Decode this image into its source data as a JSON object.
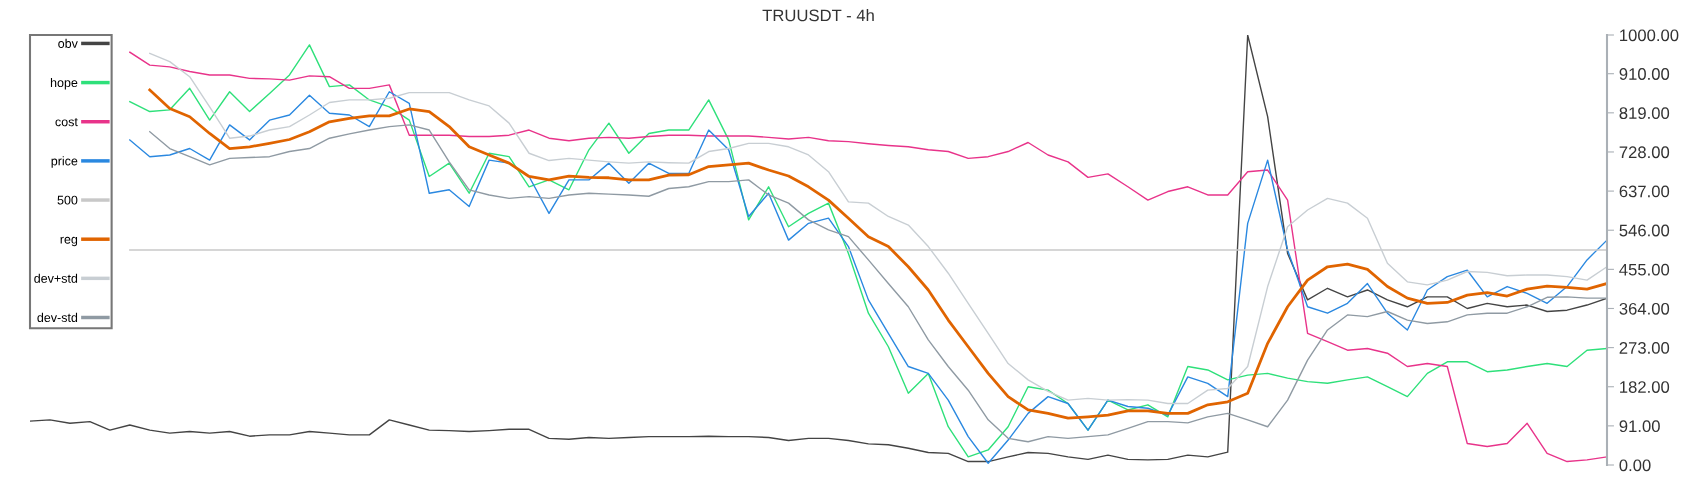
{
  "chart_data": {
    "type": "line",
    "title": "TRUUSDT - 4h",
    "categories": [
      null,
      null,
      null,
      null,
      null,
      null,
      null,
      null,
      null,
      null,
      null,
      null,
      null,
      null,
      null,
      null,
      null,
      null,
      null,
      null,
      null,
      null,
      null,
      null,
      null,
      null,
      null,
      null,
      null,
      null,
      null,
      null,
      null,
      null,
      null,
      null,
      null,
      null,
      null,
      null,
      null,
      null,
      null,
      null,
      null,
      null,
      null,
      null,
      null,
      null,
      null,
      null,
      null,
      null,
      null,
      null,
      null,
      null,
      null,
      null,
      null,
      null,
      null,
      null,
      null,
      null,
      null,
      null,
      null,
      null,
      null,
      null,
      null,
      null,
      null,
      null,
      null,
      null,
      null,
      null
    ],
    "series": [
      {
        "name": "obv",
        "color": "#444444",
        "values": [
          102,
          105,
          97,
          101,
          81,
          93,
          81,
          74,
          78,
          74,
          78,
          67,
          70,
          70,
          78,
          74,
          70,
          70,
          105,
          93,
          81,
          80,
          78,
          80,
          83,
          83,
          62,
          60,
          64,
          62,
          64,
          66,
          66,
          66,
          67,
          66,
          66,
          64,
          57,
          62,
          62,
          57,
          49,
          47,
          39,
          29,
          27,
          8,
          8,
          19,
          29,
          27,
          19,
          13,
          23,
          13,
          12,
          13,
          23,
          19,
          30,
          1000,
          810,
          492,
          384,
          411,
          391,
          407,
          384,
          368,
          391,
          391,
          364,
          376,
          368,
          372,
          357,
          360,
          372,
          388
        ]
      },
      {
        "name": "hope",
        "color": "#2ee07a",
        "values": [
          null,
          null,
          null,
          null,
          null,
          845,
          822,
          826,
          876,
          802,
          868,
          822,
          864,
          907,
          977,
          880,
          884,
          849,
          833,
          802,
          671,
          702,
          632,
          725,
          717,
          647,
          663,
          640,
          733,
          795,
          725,
          771,
          779,
          779,
          849,
          756,
          570,
          647,
          554,
          585,
          609,
          492,
          353,
          275,
          167,
          213,
          89,
          19,
          35,
          89,
          182,
          174,
          143,
          81,
          151,
          128,
          140,
          112,
          229,
          221,
          198,
          209,
          213,
          202,
          194,
          190,
          198,
          205,
          182,
          159,
          213,
          240,
          240,
          217,
          221,
          229,
          236,
          229,
          267,
          271
        ]
      },
      {
        "name": "cost",
        "color": "#e8338a",
        "values": [
          null,
          null,
          null,
          null,
          null,
          960,
          930,
          926,
          915,
          907,
          907,
          899,
          898,
          895,
          905,
          903,
          876,
          876,
          884,
          767,
          767,
          767,
          764,
          764,
          767,
          779,
          760,
          754,
          760,
          762,
          760,
          764,
          767,
          767,
          765,
          765,
          765,
          762,
          758,
          762,
          754,
          752,
          747,
          743,
          740,
          733,
          729,
          713,
          717,
          729,
          750,
          721,
          705,
          669,
          677,
          647,
          616,
          636,
          647,
          628,
          628,
          682,
          686,
          616,
          306,
          287,
          267,
          271,
          260,
          229,
          236,
          229,
          50,
          43,
          50,
          97,
          27,
          8,
          12,
          19
        ]
      },
      {
        "name": "price",
        "color": "#2a88e0",
        "values": [
          null,
          null,
          null,
          null,
          null,
          756,
          717,
          721,
          736,
          709,
          791,
          756,
          802,
          814,
          860,
          818,
          814,
          787,
          868,
          841,
          632,
          640,
          601,
          709,
          702,
          671,
          585,
          663,
          663,
          702,
          655,
          702,
          678,
          678,
          779,
          733,
          578,
          632,
          523,
          562,
          574,
          508,
          384,
          306,
          229,
          213,
          151,
          66,
          4,
          58,
          120,
          159,
          143,
          81,
          151,
          136,
          132,
          116,
          205,
          190,
          159,
          562,
          709,
          500,
          368,
          353,
          376,
          422,
          353,
          314,
          407,
          438,
          453,
          391,
          415,
          399,
          376,
          415,
          477,
          523
        ]
      },
      {
        "name": "500",
        "color": "#c8c8c8",
        "values": [
          null,
          null,
          null,
          null,
          null,
          500,
          500,
          500,
          500,
          500,
          500,
          500,
          500,
          500,
          500,
          500,
          500,
          500,
          500,
          500,
          500,
          500,
          500,
          500,
          500,
          500,
          500,
          500,
          500,
          500,
          500,
          500,
          500,
          500,
          500,
          500,
          500,
          500,
          500,
          500,
          500,
          500,
          500,
          500,
          500,
          500,
          500,
          500,
          500,
          500,
          500,
          500,
          500,
          500,
          500,
          500,
          500,
          500,
          500,
          500,
          500,
          500,
          500,
          500,
          500,
          500,
          500,
          500,
          500,
          500,
          500,
          500,
          500,
          500,
          500,
          500,
          500,
          500,
          500,
          500
        ]
      },
      {
        "name": "reg",
        "color": "#e06400",
        "values": [
          null,
          null,
          null,
          null,
          null,
          null,
          872,
          829,
          810,
          771,
          736,
          740,
          748,
          757,
          775,
          798,
          806,
          812,
          812,
          828,
          822,
          787,
          740,
          721,
          702,
          671,
          663,
          672,
          669,
          668,
          663,
          663,
          674,
          675,
          694,
          698,
          702,
          686,
          672,
          647,
          616,
          574,
          531,
          508,
          461,
          407,
          337,
          275,
          213,
          159,
          128,
          120,
          109,
          112,
          116,
          126,
          126,
          120,
          120,
          140,
          147,
          167,
          283,
          368,
          430,
          461,
          467,
          455,
          415,
          388,
          376,
          378,
          395,
          401,
          393,
          409,
          416,
          413,
          409,
          422
        ]
      },
      {
        "name": "dev+std",
        "color": "#c8ced3",
        "values": [
          null,
          null,
          null,
          null,
          null,
          null,
          957,
          938,
          903,
          833,
          760,
          765,
          779,
          787,
          814,
          843,
          849,
          849,
          853,
          866,
          866,
          866,
          849,
          835,
          795,
          725,
          708,
          713,
          709,
          705,
          702,
          705,
          703,
          702,
          729,
          736,
          748,
          748,
          740,
          721,
          682,
          612,
          609,
          578,
          558,
          508,
          446,
          376,
          306,
          236,
          198,
          171,
          151,
          155,
          151,
          152,
          151,
          143,
          143,
          174,
          178,
          229,
          415,
          554,
          593,
          620,
          609,
          574,
          469,
          426,
          419,
          430,
          450,
          448,
          440,
          442,
          442,
          438,
          430,
          461
        ]
      },
      {
        "name": "dev-std",
        "color": "#8f9aa3",
        "values": [
          null,
          null,
          null,
          null,
          null,
          null,
          775,
          736,
          717,
          698,
          713,
          715,
          717,
          729,
          736,
          760,
          770,
          779,
          787,
          791,
          779,
          705,
          640,
          628,
          620,
          624,
          620,
          628,
          632,
          630,
          628,
          625,
          643,
          647,
          659,
          659,
          663,
          628,
          609,
          570,
          547,
          531,
          477,
          422,
          368,
          291,
          229,
          174,
          105,
          62,
          54,
          66,
          62,
          66,
          70,
          85,
          101,
          101,
          98,
          112,
          120,
          105,
          89,
          151,
          244,
          314,
          349,
          345,
          357,
          337,
          329,
          333,
          349,
          353,
          353,
          368,
          390,
          391,
          388,
          388
        ]
      }
    ],
    "ylim": [
      0,
      1000
    ],
    "yticks": [
      {
        "value": 0,
        "label": "0.00"
      },
      {
        "value": 91,
        "label": "91.00"
      },
      {
        "value": 182,
        "label": "182.00"
      },
      {
        "value": 273,
        "label": "273.00"
      },
      {
        "value": 364,
        "label": "364.00"
      },
      {
        "value": 455,
        "label": "455.00"
      },
      {
        "value": 546,
        "label": "546.00"
      },
      {
        "value": 637,
        "label": "637.00"
      },
      {
        "value": 728,
        "label": "728.00"
      },
      {
        "value": 819,
        "label": "819.00"
      },
      {
        "value": 910,
        "label": "910.00"
      },
      {
        "value": 1000,
        "label": "1000.00"
      }
    ],
    "tick_labels": "y",
    "grid": false,
    "legend": "top left",
    "marker": "none",
    "line_style": "solid"
  }
}
